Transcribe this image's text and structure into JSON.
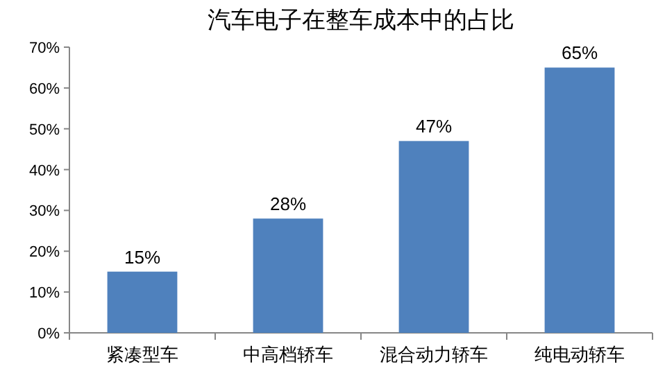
{
  "chart_data": {
    "type": "bar",
    "title": "汽车电子在整车成本中的占比",
    "categories": [
      "紧凑型车",
      "中高档轿车",
      "混合动力轿车",
      "纯电动轿车"
    ],
    "values": [
      15,
      28,
      47,
      65
    ],
    "color": "#4f81bd",
    "value_labels": [
      "15%",
      "28%",
      "47%",
      "65%"
    ],
    "ylim": [
      0,
      70
    ],
    "yticks": [
      {
        "value": 0,
        "label": "0%"
      },
      {
        "value": 10,
        "label": "10%"
      },
      {
        "value": 20,
        "label": "20%"
      },
      {
        "value": 30,
        "label": "30%"
      },
      {
        "value": 40,
        "label": "40%"
      },
      {
        "value": 50,
        "label": "50%"
      },
      {
        "value": 60,
        "label": "60%"
      },
      {
        "value": 70,
        "label": "70%"
      }
    ]
  }
}
